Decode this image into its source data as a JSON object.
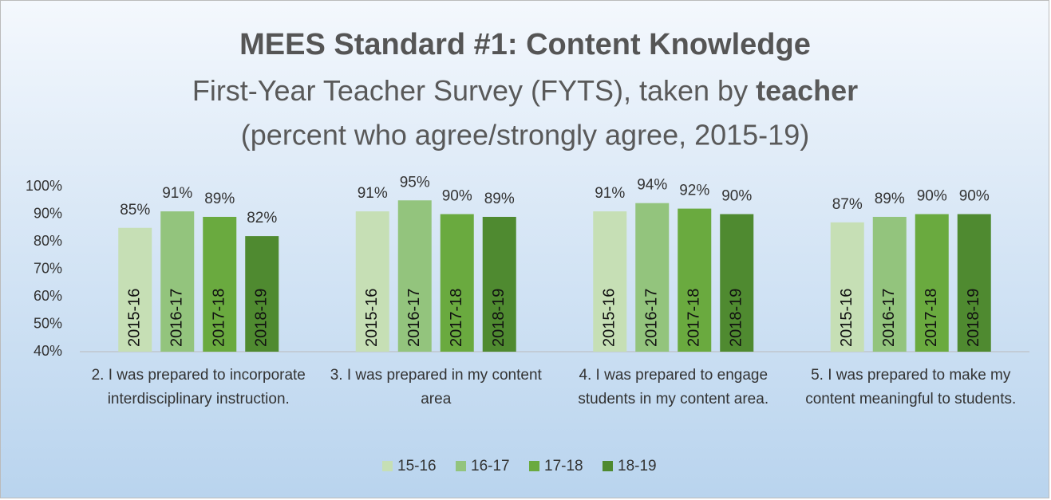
{
  "chart_data": {
    "type": "bar",
    "title": "MEES Standard #1: Content Knowledge",
    "subtitle": "First-Year Teacher Survey (FYTS), taken by",
    "subtitle_emphasis": "teacher",
    "subtitle_line2": "(percent who agree/strongly agree, 2015-19)",
    "categories": [
      "2. I was prepared to incorporate interdisciplinary instruction.",
      "3. I was prepared in my content area",
      "4. I was prepared to engage students in my content area.",
      "5. I was prepared to make my content meaningful to students."
    ],
    "series": [
      {
        "name": "15-16",
        "bar_label": "2015-16",
        "color": "#c6dfb5",
        "values": [
          85,
          91,
          91,
          87
        ],
        "value_labels": [
          "85%",
          "91%",
          "91%",
          "87%"
        ]
      },
      {
        "name": "16-17",
        "bar_label": "2016-17",
        "color": "#93c47d",
        "values": [
          91,
          95,
          94,
          89
        ],
        "value_labels": [
          "91%",
          "95%",
          "94%",
          "89%"
        ]
      },
      {
        "name": "17-18",
        "bar_label": "2017-18",
        "color": "#6aaa3f",
        "values": [
          89,
          90,
          92,
          90
        ],
        "value_labels": [
          "89%",
          "90%",
          "92%",
          "90%"
        ]
      },
      {
        "name": "18-19",
        "bar_label": "2018-19",
        "color": "#4f8a30",
        "values": [
          82,
          89,
          90,
          90
        ],
        "value_labels": [
          "82%",
          "89%",
          "90%",
          "90%"
        ]
      }
    ],
    "ylim": [
      40,
      100
    ],
    "yticks": [
      {
        "value": 40,
        "label": "40%"
      },
      {
        "value": 50,
        "label": "50%"
      },
      {
        "value": 60,
        "label": "60%"
      },
      {
        "value": 70,
        "label": "70%"
      },
      {
        "value": 80,
        "label": "80%"
      },
      {
        "value": 90,
        "label": "90%"
      },
      {
        "value": 100,
        "label": "100%"
      }
    ],
    "grid": false,
    "legend": "bottom"
  }
}
